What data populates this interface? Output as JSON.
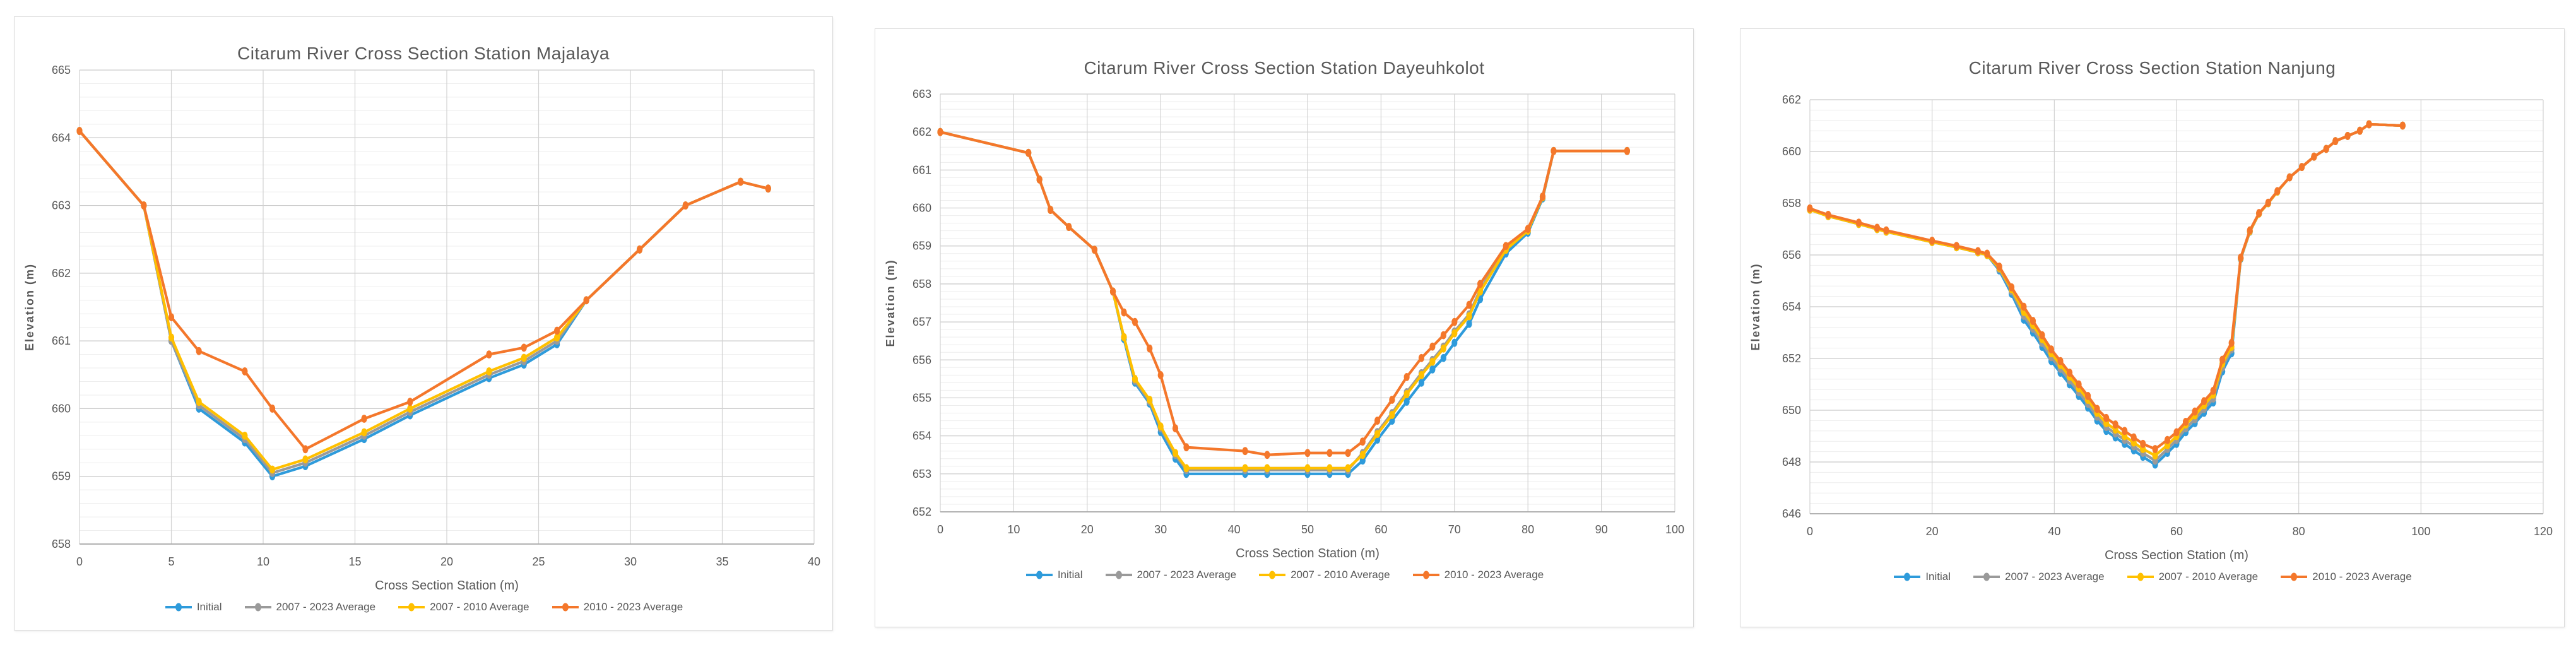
{
  "palette": {
    "blue": "#2E9BDB",
    "gray": "#9A9A9A",
    "yellow": "#FFC000",
    "orange": "#F4772B",
    "text": "#595959",
    "grid_major": "#C9C9C9",
    "grid_minor": "#EDEDED",
    "grid_vertical": "#D2D2D2",
    "axis_line": "#A8A8A8",
    "panel_border": "#D8D8D8"
  },
  "legend_labels": [
    "Initial",
    "2007 - 2023 Average",
    "2007 - 2010 Average",
    "2010 - 2023 Average"
  ],
  "chart_data": [
    {
      "type": "line",
      "title": "Citarum River Cross Section Station Majalaya",
      "xlabel": "Cross Section Station (m)",
      "ylabel": "Elevation (m)",
      "xlim": [
        0,
        40
      ],
      "xstep": 5,
      "ylim": [
        658,
        665
      ],
      "ystep": 1,
      "yminor": 0.2,
      "grid": true,
      "legend_position": "bottom",
      "x": [
        0,
        3.5,
        5,
        6.5,
        9,
        10.5,
        12.3,
        15.5,
        18,
        22.3,
        24.2,
        26,
        27.6,
        30.5,
        33,
        36,
        37.5
      ],
      "series": [
        {
          "name": "Initial",
          "color": "blue",
          "values": [
            664.1,
            663.0,
            661.0,
            660.0,
            659.5,
            659.0,
            659.15,
            659.55,
            659.9,
            660.45,
            660.65,
            660.95,
            661.6,
            662.35,
            663.0,
            663.35,
            663.25
          ]
        },
        {
          "name": "2007 - 2023 Average",
          "color": "gray",
          "values": [
            664.1,
            663.0,
            661.0,
            660.05,
            659.55,
            659.05,
            659.2,
            659.6,
            659.95,
            660.5,
            660.7,
            661.0,
            661.6,
            662.35,
            663.0,
            663.35,
            663.25
          ]
        },
        {
          "name": "2007 - 2010 Average",
          "color": "yellow",
          "values": [
            664.1,
            663.0,
            661.05,
            660.1,
            659.6,
            659.1,
            659.25,
            659.65,
            660.0,
            660.55,
            660.75,
            661.05,
            661.6,
            662.35,
            663.0,
            663.35,
            663.25
          ]
        },
        {
          "name": "2010 - 2023 Average",
          "color": "orange",
          "values": [
            664.1,
            663.0,
            661.35,
            660.85,
            660.55,
            660.0,
            659.4,
            659.85,
            660.1,
            660.8,
            660.9,
            661.15,
            661.6,
            662.35,
            663.0,
            663.35,
            663.25
          ]
        }
      ]
    },
    {
      "type": "line",
      "title": "Citarum River Cross Section Station Dayeuhkolot",
      "xlabel": "Cross Section Station (m)",
      "ylabel": "Elevation (m)",
      "xlim": [
        0,
        100
      ],
      "xstep": 10,
      "ylim": [
        652,
        663
      ],
      "ystep": 1,
      "yminor": 0.2,
      "grid": true,
      "legend_position": "bottom",
      "x": [
        0,
        12,
        13.5,
        15,
        17.5,
        21,
        23.5,
        25,
        26.5,
        28.5,
        30,
        32,
        33.5,
        41.5,
        44.5,
        50,
        53,
        55.5,
        57.5,
        59.5,
        61.5,
        63.5,
        65.5,
        67,
        68.5,
        70,
        72,
        73.5,
        77,
        80,
        82,
        83.5,
        93.5
      ],
      "series": [
        {
          "name": "Initial",
          "color": "blue",
          "values": [
            662.0,
            661.45,
            660.75,
            659.95,
            659.5,
            658.9,
            657.8,
            656.55,
            655.4,
            654.85,
            654.1,
            653.4,
            653.0,
            653.0,
            653.0,
            653.0,
            653.0,
            653.0,
            653.35,
            653.9,
            654.4,
            654.9,
            655.4,
            655.75,
            656.05,
            656.45,
            656.95,
            657.6,
            658.8,
            659.35,
            660.25,
            661.5,
            661.5
          ]
        },
        {
          "name": "2007 - 2023 Average",
          "color": "gray",
          "values": [
            662.0,
            661.45,
            660.75,
            659.95,
            659.5,
            658.9,
            657.8,
            656.6,
            655.45,
            654.9,
            654.2,
            653.5,
            653.1,
            653.1,
            653.1,
            653.1,
            653.1,
            653.1,
            653.55,
            654.1,
            654.6,
            655.15,
            655.65,
            656.0,
            656.35,
            656.75,
            657.2,
            657.85,
            658.95,
            659.4,
            660.3,
            661.5,
            661.5
          ]
        },
        {
          "name": "2007 - 2010 Average",
          "color": "yellow",
          "values": [
            662.0,
            661.45,
            660.75,
            659.95,
            659.5,
            658.9,
            657.8,
            656.6,
            655.5,
            654.95,
            654.25,
            653.55,
            653.15,
            653.15,
            653.15,
            653.15,
            653.15,
            653.15,
            653.5,
            654.05,
            654.55,
            655.1,
            655.6,
            655.95,
            656.3,
            656.7,
            657.15,
            657.8,
            658.9,
            659.4,
            660.28,
            661.5,
            661.5
          ]
        },
        {
          "name": "2010 - 2023 Average",
          "color": "orange",
          "values": [
            662.0,
            661.45,
            660.75,
            659.95,
            659.5,
            658.9,
            657.8,
            657.25,
            657.0,
            656.3,
            655.6,
            654.2,
            653.7,
            653.6,
            653.5,
            653.55,
            653.55,
            653.55,
            653.85,
            654.4,
            654.95,
            655.55,
            656.05,
            656.35,
            656.65,
            657.0,
            657.45,
            658.0,
            659.0,
            659.45,
            660.3,
            661.5,
            661.5
          ]
        }
      ]
    },
    {
      "type": "line",
      "title": "Citarum River Cross Section Station Nanjung",
      "xlabel": "Cross Section Station (m)",
      "ylabel": "Elevation (m)",
      "xlim": [
        0,
        120
      ],
      "xstep": 20,
      "ylim": [
        646,
        662
      ],
      "ystep": 2,
      "yminor": 0.4,
      "grid": true,
      "legend_position": "bottom",
      "x": [
        0,
        3,
        8,
        11,
        12.5,
        20,
        24,
        27.5,
        29,
        31,
        33,
        35,
        36.5,
        38,
        39.5,
        41,
        42.5,
        44,
        45.5,
        47,
        48.5,
        50,
        51.5,
        53,
        54.5,
        56.5,
        58.5,
        60,
        61.5,
        63,
        64.5,
        66,
        67.5,
        69,
        70.5,
        72,
        73.5,
        75,
        76.5,
        78.5,
        80.5,
        82.5,
        84.5,
        86,
        88,
        90,
        91.5,
        97
      ],
      "series": [
        {
          "name": "Initial",
          "color": "blue",
          "values": [
            657.75,
            657.5,
            657.2,
            657.0,
            656.9,
            656.5,
            656.3,
            656.1,
            656.0,
            655.4,
            654.5,
            653.5,
            653.0,
            652.45,
            651.9,
            651.45,
            651.0,
            650.55,
            650.1,
            649.6,
            649.2,
            648.95,
            648.7,
            648.45,
            648.2,
            647.9,
            648.35,
            648.7,
            649.15,
            649.5,
            649.9,
            650.3,
            651.5,
            652.2,
            655.85,
            656.9,
            657.6,
            658.0,
            658.45,
            659.0,
            659.4,
            659.8,
            660.1,
            660.4,
            660.6,
            660.8,
            661.05,
            661.0
          ]
        },
        {
          "name": "2007 - 2023 Average",
          "color": "gray",
          "values": [
            657.75,
            657.5,
            657.2,
            657.0,
            656.9,
            656.5,
            656.3,
            656.1,
            656.0,
            655.45,
            654.6,
            653.65,
            653.15,
            652.6,
            652.05,
            651.6,
            651.15,
            650.7,
            650.25,
            649.75,
            649.35,
            649.1,
            648.85,
            648.6,
            648.35,
            648.05,
            648.5,
            648.85,
            649.3,
            649.65,
            650.05,
            650.45,
            651.65,
            652.35,
            655.87,
            656.9,
            657.6,
            658.0,
            658.45,
            659.0,
            659.4,
            659.8,
            660.1,
            660.4,
            660.6,
            660.8,
            661.05,
            661.0
          ]
        },
        {
          "name": "2007 - 2010 Average",
          "color": "yellow",
          "values": [
            657.75,
            657.5,
            657.2,
            657.0,
            656.9,
            656.5,
            656.3,
            656.1,
            656.0,
            655.5,
            654.68,
            653.8,
            653.3,
            652.75,
            652.2,
            651.75,
            651.3,
            650.85,
            650.4,
            649.9,
            649.5,
            649.25,
            649.0,
            648.75,
            648.5,
            648.25,
            648.65,
            649.0,
            649.45,
            649.8,
            650.2,
            650.6,
            651.8,
            652.45,
            655.88,
            656.92,
            657.6,
            658.0,
            658.45,
            659.0,
            659.4,
            659.8,
            660.1,
            660.4,
            660.6,
            660.8,
            661.05,
            661.0
          ]
        },
        {
          "name": "2010 - 2023 Average",
          "color": "orange",
          "values": [
            657.8,
            657.55,
            657.25,
            657.05,
            656.95,
            656.55,
            656.35,
            656.15,
            656.05,
            655.55,
            654.75,
            654.0,
            653.45,
            652.9,
            652.35,
            651.9,
            651.45,
            651.0,
            650.55,
            650.05,
            649.7,
            649.45,
            649.2,
            648.95,
            648.7,
            648.5,
            648.85,
            649.15,
            649.55,
            649.95,
            650.35,
            650.75,
            651.95,
            652.6,
            655.9,
            656.95,
            657.62,
            658.02,
            658.47,
            659.0,
            659.4,
            659.8,
            660.1,
            660.4,
            660.6,
            660.8,
            661.05,
            661.0
          ]
        }
      ]
    }
  ]
}
